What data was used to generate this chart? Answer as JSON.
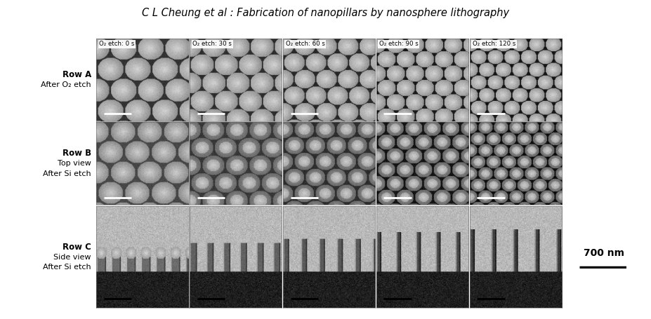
{
  "title": "C L Cheung et al : Fabrication of nanopillars by nanosphere lithography",
  "col_labels": [
    "O₂ etch: 0 s",
    "O₂ etch: 30 s",
    "O₂ etch: 60 s",
    "O₂ etch: 90 s",
    "O₂ etch: 120 s"
  ],
  "row_labels_bold": [
    "Row A",
    "Row B",
    "Row C"
  ],
  "row_labels_normal": [
    [
      "After O₂ etch"
    ],
    [
      "Top view",
      "After Si etch"
    ],
    [
      "Side view",
      "After Si etch"
    ]
  ],
  "scale_label": "700 nm",
  "bg_color": "#ffffff",
  "title_fontsize": 10.5,
  "col_label_fontsize": 6.2,
  "row_label_fontsize": 8.5,
  "scale_fontsize": 10
}
